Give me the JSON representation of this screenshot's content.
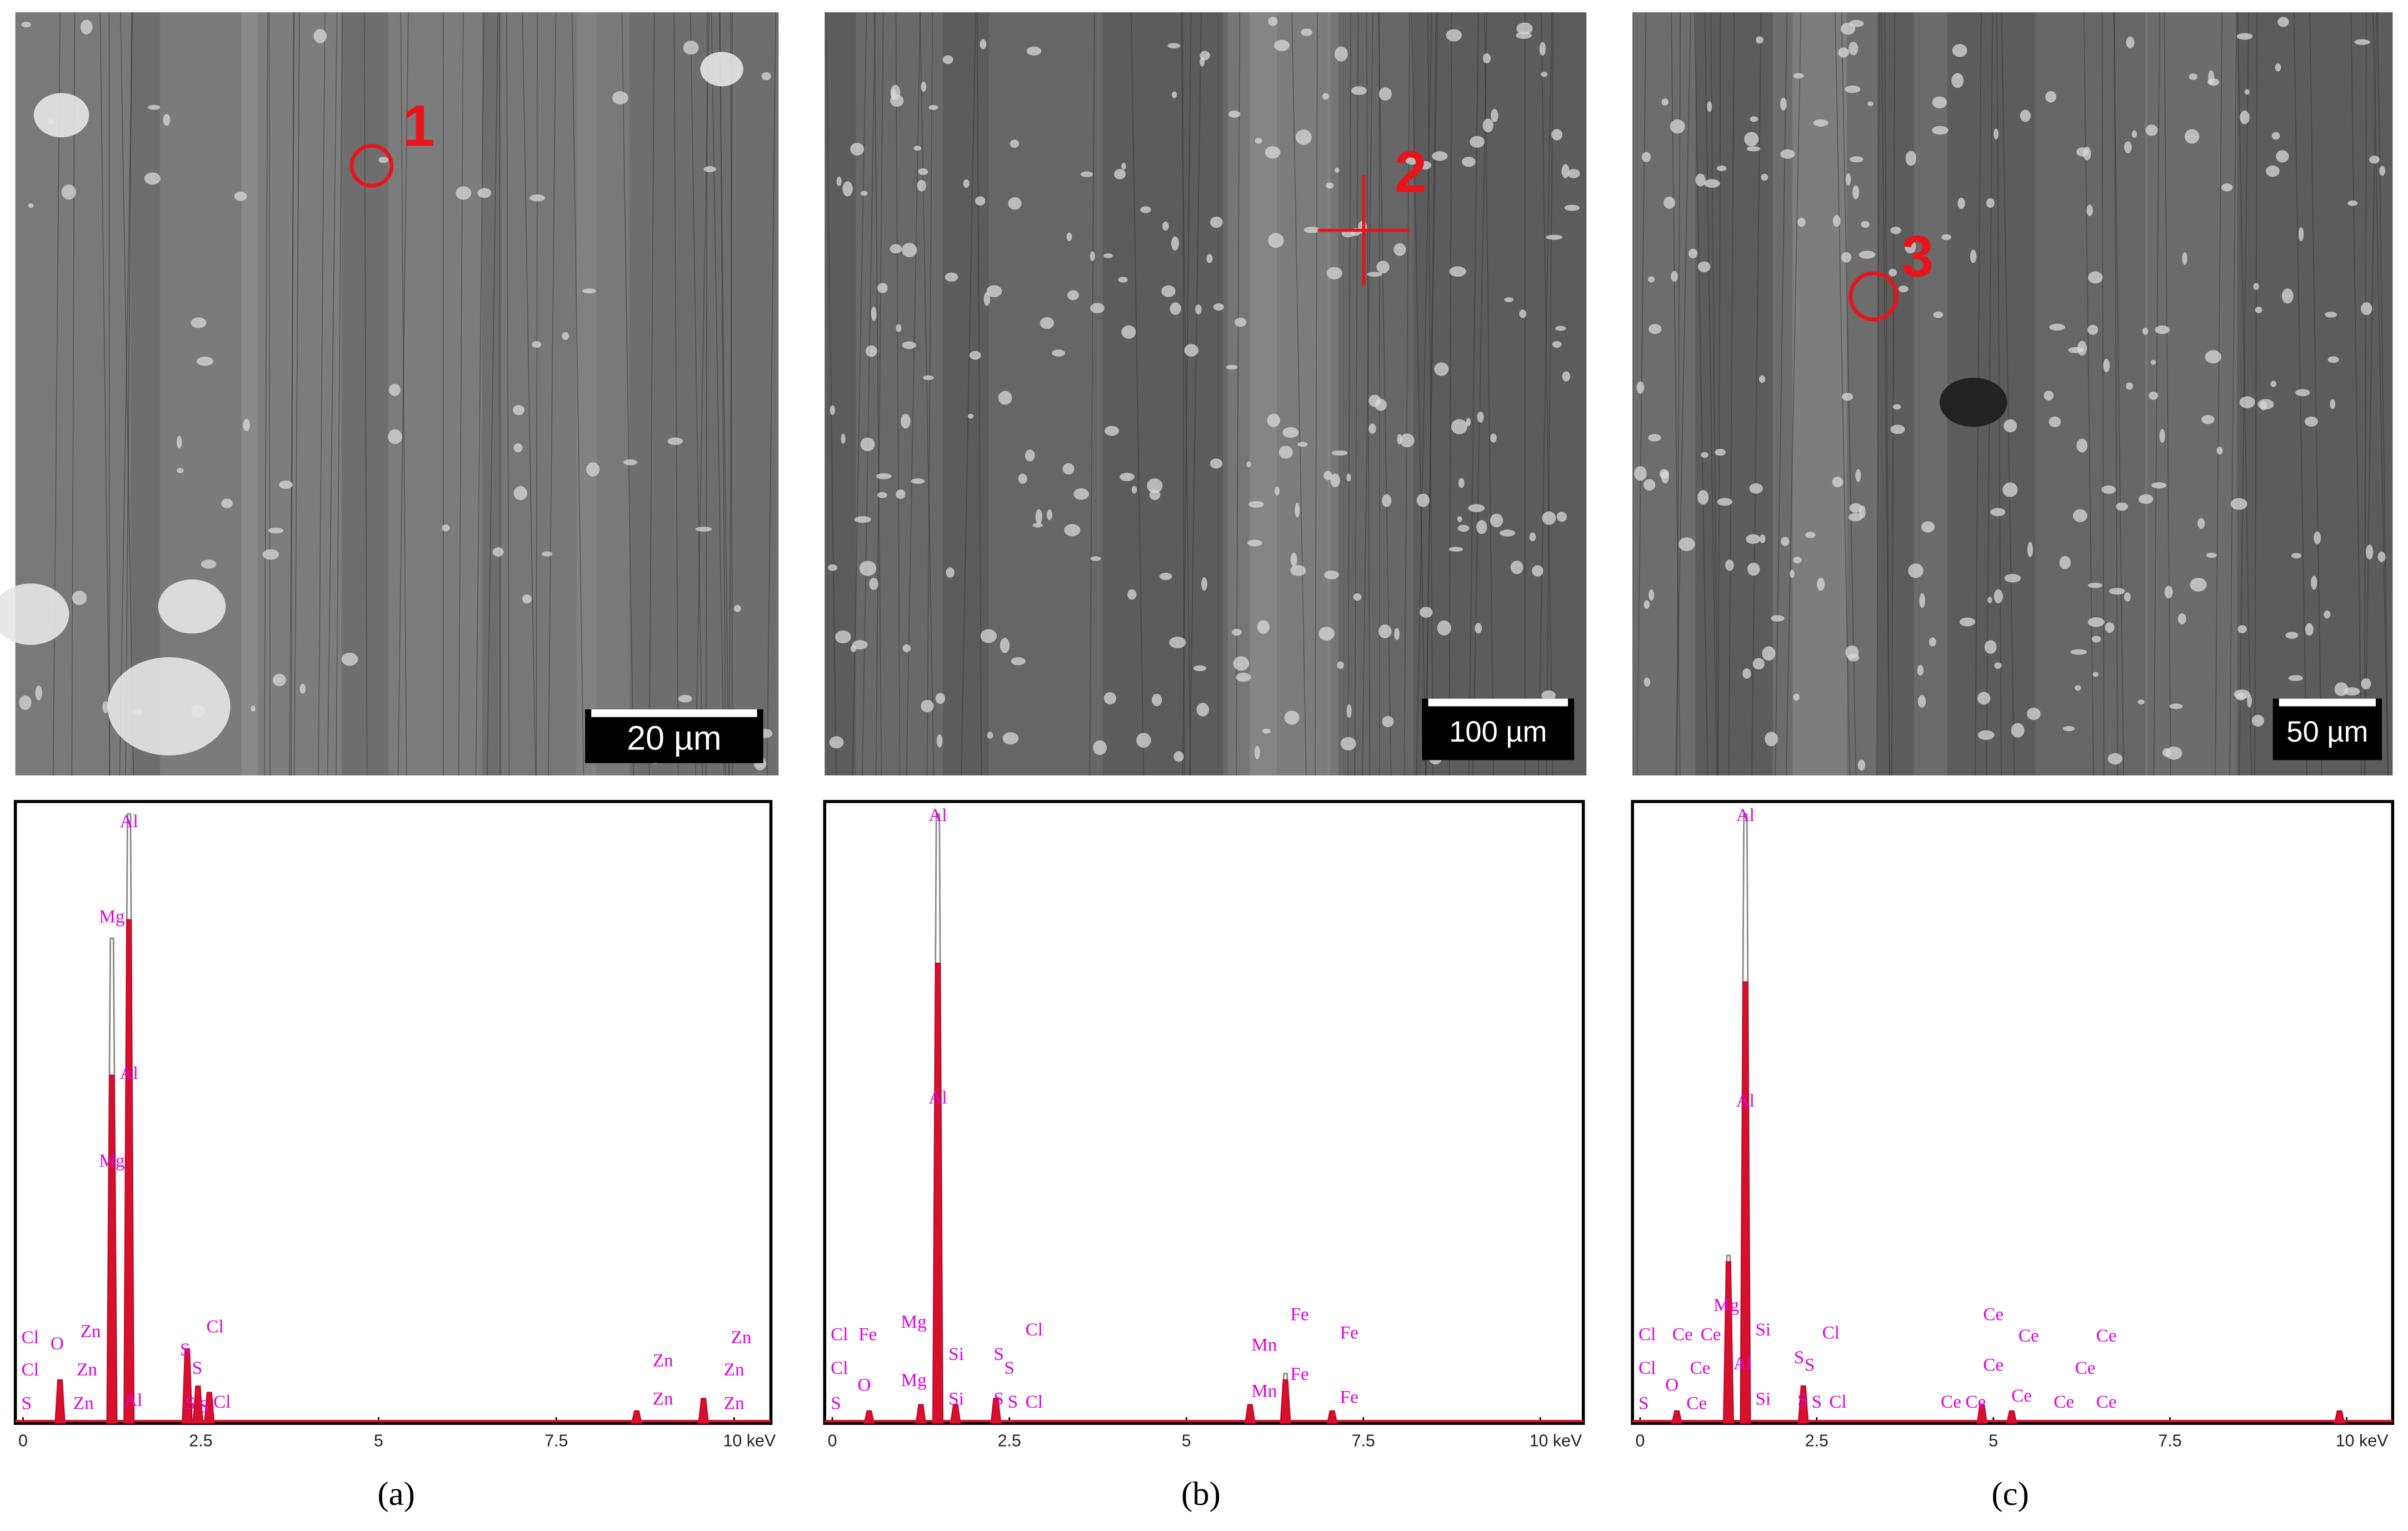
{
  "panels": [
    {
      "label": "(a)",
      "sem": {
        "marker": "1",
        "scale_bar": "20 µm"
      },
      "spectrum": {
        "xlim": [
          0,
          10
        ],
        "xticks": [
          0,
          2.5,
          5,
          7.5,
          {
            "value": 10,
            "label": "10 keV"
          }
        ],
        "ylim": [
          0,
          100
        ],
        "peaks": [
          {
            "keV": 0.52,
            "gray": 6,
            "red": 7
          },
          {
            "keV": 1.25,
            "gray": 78,
            "red": 56
          },
          {
            "keV": 1.49,
            "gray": 98,
            "red": 81
          },
          {
            "keV": 2.31,
            "gray": 10,
            "red": 12
          },
          {
            "keV": 2.46,
            "gray": 5,
            "red": 6
          },
          {
            "keV": 2.62,
            "gray": 4,
            "red": 5
          },
          {
            "keV": 8.63,
            "gray": 2,
            "red": 2
          },
          {
            "keV": 9.57,
            "gray": 4,
            "red": 4
          }
        ],
        "labels": [
          {
            "text": "Al",
            "keV": 1.49
          },
          {
            "text": "Mg",
            "keV": 1.25
          },
          {
            "text": "Al",
            "keV": 1.49
          },
          {
            "text": "Mg",
            "keV": 1.25
          },
          {
            "text": "Cl",
            "keV": 0.1
          },
          {
            "text": "O",
            "keV": 0.48
          },
          {
            "text": "Zn",
            "keV": 0.95
          },
          {
            "text": "Cl",
            "keV": 0.1
          },
          {
            "text": "Zn",
            "keV": 0.9
          },
          {
            "text": "S",
            "keV": 0.05
          },
          {
            "text": "Zn",
            "keV": 0.85
          },
          {
            "text": "Al",
            "keV": 1.55
          },
          {
            "text": "S",
            "keV": 2.28
          },
          {
            "text": "S",
            "keV": 2.45
          },
          {
            "text": "Cl",
            "keV": 2.7
          },
          {
            "text": "S",
            "keV": 2.35
          },
          {
            "text": "S",
            "keV": 2.55
          },
          {
            "text": "Cl",
            "keV": 2.8
          },
          {
            "text": "Zn",
            "keV": 9.0
          },
          {
            "text": "Zn",
            "keV": 9.0
          },
          {
            "text": "Zn",
            "keV": 10.1
          },
          {
            "text": "Zn",
            "keV": 10.0
          },
          {
            "text": "Zn",
            "keV": 10.0
          }
        ]
      }
    },
    {
      "label": "(b)",
      "sem": {
        "marker": "2",
        "scale_bar": "100 µm"
      },
      "spectrum": {
        "xlim": [
          0,
          10
        ],
        "xticks": [
          0,
          2.5,
          5,
          7.5,
          {
            "value": 10,
            "label": "10 keV"
          }
        ],
        "ylim": [
          0,
          100
        ],
        "peaks": [
          {
            "keV": 0.52,
            "gray": 2,
            "red": 2
          },
          {
            "keV": 1.25,
            "gray": 3,
            "red": 3
          },
          {
            "keV": 1.49,
            "gray": 98,
            "red": 74
          },
          {
            "keV": 1.74,
            "gray": 3,
            "red": 3
          },
          {
            "keV": 2.31,
            "gray": 4,
            "red": 4
          },
          {
            "keV": 5.9,
            "gray": 3,
            "red": 3
          },
          {
            "keV": 6.4,
            "gray": 8,
            "red": 7
          },
          {
            "keV": 7.06,
            "gray": 2,
            "red": 2
          }
        ],
        "labels": [
          {
            "text": "Al",
            "keV": 1.49
          },
          {
            "text": "Al",
            "keV": 1.49
          },
          {
            "text": "Cl",
            "keV": 0.1
          },
          {
            "text": "Fe",
            "keV": 0.5
          },
          {
            "text": "Cl",
            "keV": 0.1
          },
          {
            "text": "O",
            "keV": 0.45
          },
          {
            "text": "S",
            "keV": 0.05
          },
          {
            "text": "Mg",
            "keV": 1.15
          },
          {
            "text": "Mg",
            "keV": 1.15
          },
          {
            "text": "Si",
            "keV": 1.75
          },
          {
            "text": "Si",
            "keV": 1.75
          },
          {
            "text": "S",
            "keV": 2.35
          },
          {
            "text": "S",
            "keV": 2.5
          },
          {
            "text": "S",
            "keV": 2.35
          },
          {
            "text": "S",
            "keV": 2.55
          },
          {
            "text": "Cl",
            "keV": 2.85
          },
          {
            "text": "Cl",
            "keV": 2.85
          },
          {
            "text": "Mn",
            "keV": 6.1
          },
          {
            "text": "Mn",
            "keV": 6.1
          },
          {
            "text": "Fe",
            "keV": 6.6
          },
          {
            "text": "Fe",
            "keV": 6.6
          },
          {
            "text": "Fe",
            "keV": 7.3
          },
          {
            "text": "Fe",
            "keV": 7.3
          }
        ]
      }
    },
    {
      "label": "(c)",
      "sem": {
        "marker": "3",
        "scale_bar": "50 µm"
      },
      "spectrum": {
        "xlim": [
          0,
          10
        ],
        "xticks": [
          0,
          2.5,
          5,
          7.5,
          {
            "value": 10,
            "label": "10 keV"
          }
        ],
        "ylim": [
          0,
          100
        ],
        "peaks": [
          {
            "keV": 0.52,
            "gray": 2,
            "red": 2
          },
          {
            "keV": 1.25,
            "gray": 27,
            "red": 26
          },
          {
            "keV": 1.49,
            "gray": 98,
            "red": 71
          },
          {
            "keV": 2.31,
            "gray": 6,
            "red": 6
          },
          {
            "keV": 4.84,
            "gray": 3,
            "red": 3
          },
          {
            "keV": 5.26,
            "gray": 2,
            "red": 2
          },
          {
            "keV": 9.9,
            "gray": 2,
            "red": 2
          }
        ],
        "labels": [
          {
            "text": "Al",
            "keV": 1.49
          },
          {
            "text": "Al",
            "keV": 1.49
          },
          {
            "text": "Mg",
            "keV": 1.22
          },
          {
            "text": "Si",
            "keV": 1.74
          },
          {
            "text": "Cl",
            "keV": 0.1
          },
          {
            "text": "Ce",
            "keV": 0.6
          },
          {
            "text": "Ce",
            "keV": 1.0
          },
          {
            "text": "Cl",
            "keV": 0.1
          },
          {
            "text": "O",
            "keV": 0.45
          },
          {
            "text": "Ce",
            "keV": 0.85
          },
          {
            "text": "S",
            "keV": 0.05
          },
          {
            "text": "Ce",
            "keV": 0.8
          },
          {
            "text": "Al",
            "keV": 1.45
          },
          {
            "text": "Si",
            "keV": 1.74
          },
          {
            "text": "S",
            "keV": 2.25
          },
          {
            "text": "S",
            "keV": 2.4
          },
          {
            "text": "Cl",
            "keV": 2.7
          },
          {
            "text": "S",
            "keV": 2.3
          },
          {
            "text": "S",
            "keV": 2.5
          },
          {
            "text": "Cl",
            "keV": 2.8
          },
          {
            "text": "Ce",
            "keV": 5.0
          },
          {
            "text": "Ce",
            "keV": 5.5
          },
          {
            "text": "Ce",
            "keV": 6.6
          },
          {
            "text": "Ce",
            "keV": 5.0
          },
          {
            "text": "Ce",
            "keV": 6.3
          },
          {
            "text": "Ce",
            "keV": 4.4
          },
          {
            "text": "Ce",
            "keV": 4.75
          },
          {
            "text": "Ce",
            "keV": 5.4
          },
          {
            "text": "Ce",
            "keV": 6.0
          },
          {
            "text": "Ce",
            "keV": 6.6
          }
        ]
      }
    }
  ]
}
